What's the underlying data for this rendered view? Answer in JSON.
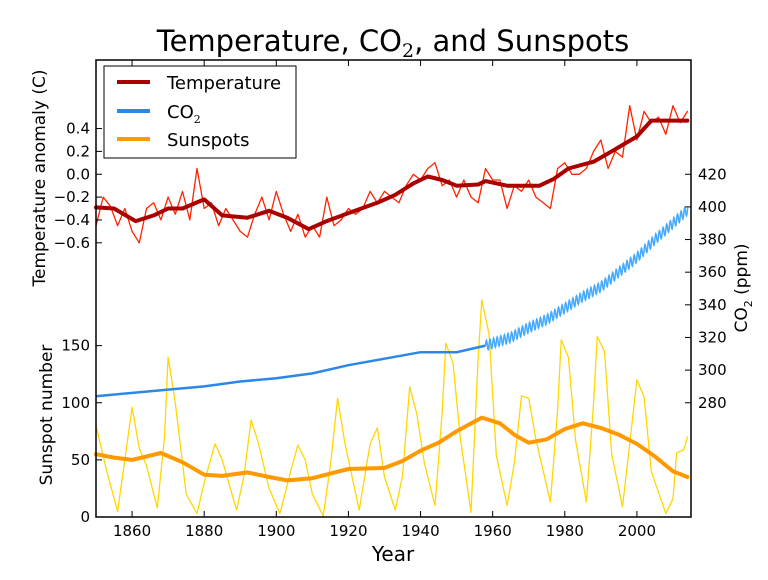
{
  "chart_data": {
    "type": "line",
    "title": "Temperature, CO2, and Sunspots",
    "title_parts": {
      "pre": "Temperature, CO",
      "sub": "2",
      "post": ", and Sunspots"
    },
    "xlabel": "Year",
    "xlim": [
      1850,
      2015
    ],
    "xticks": [
      1860,
      1880,
      1900,
      1920,
      1940,
      1960,
      1980,
      2000
    ],
    "axes": {
      "temperature": {
        "label": "Temperature anomaly (C)",
        "side": "left-top",
        "ylim": [
          -3,
          1
        ],
        "ticks": [
          "0.4",
          "0.2",
          "0.0",
          "-0.2",
          "-0.4",
          "-0.6"
        ]
      },
      "sunspots": {
        "label": "Sunspot number",
        "side": "left-bottom",
        "ylim": [
          0,
          400
        ],
        "ticks": [
          "0",
          "50",
          "100",
          "150"
        ]
      },
      "co2": {
        "label_pre": "CO",
        "label_sub": "2",
        "label_post": " (ppm)",
        "side": "right",
        "ylim": [
          210,
          490
        ],
        "ticks": [
          "280",
          "300",
          "320",
          "340",
          "360",
          "380",
          "400",
          "420"
        ]
      }
    },
    "legend": {
      "placement": "top-left",
      "entries": [
        {
          "label": "Temperature",
          "color": "#aa0000"
        },
        {
          "label_pre": "CO",
          "label_sub": "2",
          "color": "#2b88e8"
        },
        {
          "label": "Sunspots",
          "color": "#ff9900"
        }
      ]
    },
    "grid": false,
    "series": [
      {
        "name": "Temperature",
        "axis": "temperature",
        "color": "#ff2200",
        "role": "raw",
        "points": [
          [
            1850,
            -0.45
          ],
          [
            1852,
            -0.2
          ],
          [
            1854,
            -0.28
          ],
          [
            1856,
            -0.45
          ],
          [
            1858,
            -0.3
          ],
          [
            1860,
            -0.5
          ],
          [
            1862,
            -0.6
          ],
          [
            1864,
            -0.3
          ],
          [
            1866,
            -0.25
          ],
          [
            1868,
            -0.4
          ],
          [
            1870,
            -0.2
          ],
          [
            1872,
            -0.35
          ],
          [
            1874,
            -0.15
          ],
          [
            1876,
            -0.4
          ],
          [
            1878,
            0.05
          ],
          [
            1880,
            -0.3
          ],
          [
            1882,
            -0.25
          ],
          [
            1884,
            -0.45
          ],
          [
            1886,
            -0.3
          ],
          [
            1888,
            -0.4
          ],
          [
            1890,
            -0.5
          ],
          [
            1892,
            -0.55
          ],
          [
            1894,
            -0.35
          ],
          [
            1896,
            -0.2
          ],
          [
            1898,
            -0.4
          ],
          [
            1900,
            -0.15
          ],
          [
            1902,
            -0.35
          ],
          [
            1904,
            -0.5
          ],
          [
            1906,
            -0.35
          ],
          [
            1908,
            -0.55
          ],
          [
            1910,
            -0.45
          ],
          [
            1912,
            -0.55
          ],
          [
            1914,
            -0.2
          ],
          [
            1916,
            -0.45
          ],
          [
            1918,
            -0.4
          ],
          [
            1920,
            -0.3
          ],
          [
            1922,
            -0.35
          ],
          [
            1924,
            -0.3
          ],
          [
            1926,
            -0.15
          ],
          [
            1928,
            -0.25
          ],
          [
            1930,
            -0.15
          ],
          [
            1932,
            -0.2
          ],
          [
            1934,
            -0.25
          ],
          [
            1936,
            -0.1
          ],
          [
            1938,
            0.0
          ],
          [
            1940,
            -0.05
          ],
          [
            1942,
            0.05
          ],
          [
            1944,
            0.1
          ],
          [
            1946,
            -0.1
          ],
          [
            1948,
            -0.05
          ],
          [
            1950,
            -0.2
          ],
          [
            1952,
            -0.05
          ],
          [
            1954,
            -0.2
          ],
          [
            1956,
            -0.25
          ],
          [
            1958,
            0.05
          ],
          [
            1960,
            -0.05
          ],
          [
            1962,
            -0.05
          ],
          [
            1964,
            -0.3
          ],
          [
            1966,
            -0.1
          ],
          [
            1968,
            -0.15
          ],
          [
            1970,
            -0.05
          ],
          [
            1972,
            -0.2
          ],
          [
            1974,
            -0.25
          ],
          [
            1976,
            -0.3
          ],
          [
            1978,
            0.05
          ],
          [
            1980,
            0.1
          ],
          [
            1982,
            0.0
          ],
          [
            1984,
            0.0
          ],
          [
            1986,
            0.05
          ],
          [
            1988,
            0.2
          ],
          [
            1990,
            0.3
          ],
          [
            1992,
            0.05
          ],
          [
            1994,
            0.2
          ],
          [
            1996,
            0.15
          ],
          [
            1998,
            0.6
          ],
          [
            2000,
            0.3
          ],
          [
            2002,
            0.55
          ],
          [
            2004,
            0.45
          ],
          [
            2006,
            0.5
          ],
          [
            2008,
            0.35
          ],
          [
            2010,
            0.6
          ],
          [
            2012,
            0.45
          ],
          [
            2014,
            0.55
          ]
        ]
      },
      {
        "name": "Temperature",
        "axis": "temperature",
        "color": "#aa0000",
        "role": "smoothed",
        "points": [
          [
            1850,
            -0.29
          ],
          [
            1855,
            -0.3
          ],
          [
            1861,
            -0.41
          ],
          [
            1866,
            -0.36
          ],
          [
            1870,
            -0.3
          ],
          [
            1874,
            -0.3
          ],
          [
            1880,
            -0.22
          ],
          [
            1885,
            -0.36
          ],
          [
            1892,
            -0.38
          ],
          [
            1898,
            -0.32
          ],
          [
            1903,
            -0.38
          ],
          [
            1909,
            -0.48
          ],
          [
            1914,
            -0.41
          ],
          [
            1920,
            -0.34
          ],
          [
            1928,
            -0.25
          ],
          [
            1933,
            -0.18
          ],
          [
            1938,
            -0.08
          ],
          [
            1942,
            -0.02
          ],
          [
            1946,
            -0.05
          ],
          [
            1950,
            -0.1
          ],
          [
            1956,
            -0.09
          ],
          [
            1958,
            -0.06
          ],
          [
            1964,
            -0.1
          ],
          [
            1973,
            -0.1
          ],
          [
            1977,
            -0.04
          ],
          [
            1981,
            0.05
          ],
          [
            1988,
            0.11
          ],
          [
            1993,
            0.2
          ],
          [
            2000,
            0.33
          ],
          [
            2004,
            0.47
          ],
          [
            2007,
            0.47
          ],
          [
            2014,
            0.47
          ]
        ]
      },
      {
        "name": "CO2",
        "axis": "co2",
        "color": "#2b88e8",
        "seasonal_color": "#44aaff",
        "seasonal_from": 1958,
        "seasonal_amplitude": 3,
        "points": [
          [
            1850,
            284
          ],
          [
            1865,
            287
          ],
          [
            1880,
            290
          ],
          [
            1890,
            293
          ],
          [
            1900,
            295
          ],
          [
            1910,
            298
          ],
          [
            1920,
            303
          ],
          [
            1930,
            307
          ],
          [
            1940,
            311
          ],
          [
            1950,
            311
          ],
          [
            1958,
            315
          ],
          [
            1965,
            320
          ],
          [
            1970,
            326
          ],
          [
            1975,
            331
          ],
          [
            1980,
            338
          ],
          [
            1985,
            345
          ],
          [
            1990,
            351
          ],
          [
            1995,
            360
          ],
          [
            2000,
            369
          ],
          [
            2005,
            380
          ],
          [
            2010,
            390
          ],
          [
            2014,
            398
          ]
        ]
      },
      {
        "name": "Sunspots",
        "axis": "sunspots",
        "color": "#ffd700",
        "role": "raw",
        "points": [
          [
            1850,
            80
          ],
          [
            1853,
            40
          ],
          [
            1856,
            5
          ],
          [
            1858,
            50
          ],
          [
            1860,
            96
          ],
          [
            1862,
            60
          ],
          [
            1864,
            45
          ],
          [
            1867,
            8
          ],
          [
            1869,
            70
          ],
          [
            1870,
            140
          ],
          [
            1872,
            100
          ],
          [
            1875,
            20
          ],
          [
            1878,
            3
          ],
          [
            1880,
            30
          ],
          [
            1883,
            64
          ],
          [
            1885,
            50
          ],
          [
            1889,
            6
          ],
          [
            1891,
            35
          ],
          [
            1893,
            85
          ],
          [
            1895,
            65
          ],
          [
            1898,
            25
          ],
          [
            1901,
            3
          ],
          [
            1904,
            40
          ],
          [
            1906,
            63
          ],
          [
            1908,
            50
          ],
          [
            1910,
            20
          ],
          [
            1913,
            1
          ],
          [
            1915,
            45
          ],
          [
            1917,
            104
          ],
          [
            1919,
            65
          ],
          [
            1923,
            6
          ],
          [
            1926,
            64
          ],
          [
            1928,
            78
          ],
          [
            1930,
            35
          ],
          [
            1933,
            6
          ],
          [
            1935,
            36
          ],
          [
            1937,
            114
          ],
          [
            1939,
            90
          ],
          [
            1941,
            48
          ],
          [
            1944,
            10
          ],
          [
            1946,
            92
          ],
          [
            1947,
            152
          ],
          [
            1949,
            135
          ],
          [
            1951,
            70
          ],
          [
            1954,
            4
          ],
          [
            1956,
            140
          ],
          [
            1957,
            190
          ],
          [
            1959,
            160
          ],
          [
            1961,
            54
          ],
          [
            1964,
            10
          ],
          [
            1966,
            47
          ],
          [
            1968,
            106
          ],
          [
            1970,
            104
          ],
          [
            1972,
            68
          ],
          [
            1976,
            13
          ],
          [
            1978,
            93
          ],
          [
            1979,
            155
          ],
          [
            1981,
            140
          ],
          [
            1983,
            67
          ],
          [
            1986,
            13
          ],
          [
            1988,
            100
          ],
          [
            1989,
            158
          ],
          [
            1991,
            145
          ],
          [
            1993,
            55
          ],
          [
            1996,
            9
          ],
          [
            1998,
            64
          ],
          [
            2000,
            120
          ],
          [
            2002,
            105
          ],
          [
            2004,
            40
          ],
          [
            2008,
            3
          ],
          [
            2010,
            16
          ],
          [
            2011,
            56
          ],
          [
            2013,
            59
          ],
          [
            2014,
            70
          ]
        ]
      },
      {
        "name": "Sunspots",
        "axis": "sunspots",
        "color": "#ff9900",
        "role": "smoothed",
        "points": [
          [
            1850,
            55
          ],
          [
            1855,
            52
          ],
          [
            1860,
            50
          ],
          [
            1868,
            56
          ],
          [
            1874,
            48
          ],
          [
            1880,
            37
          ],
          [
            1885,
            36
          ],
          [
            1892,
            39
          ],
          [
            1898,
            35
          ],
          [
            1903,
            32
          ],
          [
            1910,
            34
          ],
          [
            1915,
            38
          ],
          [
            1920,
            42
          ],
          [
            1930,
            43
          ],
          [
            1935,
            49
          ],
          [
            1940,
            58
          ],
          [
            1945,
            65
          ],
          [
            1950,
            75
          ],
          [
            1957,
            87
          ],
          [
            1962,
            82
          ],
          [
            1966,
            72
          ],
          [
            1970,
            65
          ],
          [
            1975,
            68
          ],
          [
            1980,
            77
          ],
          [
            1985,
            82
          ],
          [
            1990,
            78
          ],
          [
            1995,
            72
          ],
          [
            2000,
            64
          ],
          [
            2005,
            53
          ],
          [
            2010,
            40
          ],
          [
            2014,
            35
          ]
        ]
      }
    ]
  }
}
